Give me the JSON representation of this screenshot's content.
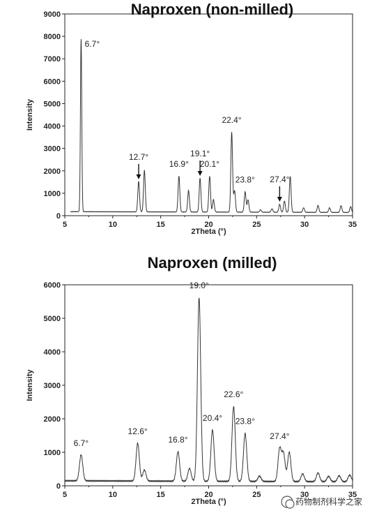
{
  "chart_data": [
    {
      "type": "line",
      "title": "Naproxen (non-milled)",
      "xlabel": "2Theta (°)",
      "ylabel": "Intensity",
      "xlim": [
        5,
        35
      ],
      "ylim": [
        0,
        9000
      ],
      "xticks": [
        "5",
        "10",
        "15",
        "20",
        "25",
        "30",
        "35"
      ],
      "yticks": [
        "0",
        "1000",
        "2000",
        "3000",
        "4000",
        "5000",
        "6000",
        "7000",
        "8000",
        "9000"
      ],
      "baseline": 180,
      "peaks": [
        {
          "x": 6.7,
          "y": 7850
        },
        {
          "x": 12.7,
          "y": 1500
        },
        {
          "x": 13.3,
          "y": 2000
        },
        {
          "x": 16.9,
          "y": 1750
        },
        {
          "x": 17.9,
          "y": 1100
        },
        {
          "x": 19.1,
          "y": 1650
        },
        {
          "x": 20.1,
          "y": 1750
        },
        {
          "x": 20.5,
          "y": 700
        },
        {
          "x": 22.4,
          "y": 3700
        },
        {
          "x": 22.7,
          "y": 1100
        },
        {
          "x": 23.8,
          "y": 1050
        },
        {
          "x": 24.1,
          "y": 700
        },
        {
          "x": 25.4,
          "y": 250
        },
        {
          "x": 26.6,
          "y": 300
        },
        {
          "x": 27.4,
          "y": 500
        },
        {
          "x": 27.9,
          "y": 650
        },
        {
          "x": 28.5,
          "y": 1750
        },
        {
          "x": 29.9,
          "y": 350
        },
        {
          "x": 31.4,
          "y": 450
        },
        {
          "x": 32.6,
          "y": 350
        },
        {
          "x": 33.8,
          "y": 450
        },
        {
          "x": 34.8,
          "y": 400
        }
      ],
      "annotations": [
        {
          "label": "6.7°",
          "x": 6.7,
          "arrow": false
        },
        {
          "label": "12.7°",
          "x": 12.7,
          "arrow": true
        },
        {
          "label": "16.9°",
          "x": 16.9,
          "arrow": false
        },
        {
          "label": "19.1°",
          "x": 19.1,
          "arrow": true
        },
        {
          "label": "20.1°",
          "x": 20.1,
          "arrow": false
        },
        {
          "label": "22.4°",
          "x": 22.4,
          "arrow": false
        },
        {
          "label": "23.8°",
          "x": 23.8,
          "arrow": false
        },
        {
          "label": "27.4°",
          "x": 27.4,
          "arrow": true
        }
      ]
    },
    {
      "type": "line",
      "title": "Naproxen (milled)",
      "xlabel": "2Theta (°)",
      "ylabel": "Intensity",
      "xlim": [
        5,
        35
      ],
      "ylim": [
        0,
        6000
      ],
      "xticks": [
        "5",
        "10",
        "15",
        "20",
        "25",
        "30",
        "35"
      ],
      "yticks": [
        "0",
        "1000",
        "2000",
        "3000",
        "4000",
        "5000",
        "6000"
      ],
      "baseline": 150,
      "peaks": [
        {
          "x": 6.7,
          "y": 900
        },
        {
          "x": 12.6,
          "y": 1250
        },
        {
          "x": 13.3,
          "y": 450
        },
        {
          "x": 16.8,
          "y": 1000
        },
        {
          "x": 18.0,
          "y": 500
        },
        {
          "x": 19.0,
          "y": 5600
        },
        {
          "x": 20.4,
          "y": 1650
        },
        {
          "x": 22.6,
          "y": 2350
        },
        {
          "x": 23.8,
          "y": 1550
        },
        {
          "x": 25.3,
          "y": 280
        },
        {
          "x": 27.4,
          "y": 1100
        },
        {
          "x": 27.8,
          "y": 950
        },
        {
          "x": 28.4,
          "y": 1000
        },
        {
          "x": 29.8,
          "y": 350
        },
        {
          "x": 31.4,
          "y": 380
        },
        {
          "x": 32.5,
          "y": 280
        },
        {
          "x": 33.6,
          "y": 300
        },
        {
          "x": 34.7,
          "y": 320
        }
      ],
      "annotations": [
        {
          "label": "6.7°",
          "x": 6.7,
          "arrow": false
        },
        {
          "label": "12.6°",
          "x": 12.6,
          "arrow": false
        },
        {
          "label": "16.8°",
          "x": 16.8,
          "arrow": false
        },
        {
          "label": "19.0°",
          "x": 19.0,
          "arrow": false
        },
        {
          "label": "20.4°",
          "x": 20.4,
          "arrow": false
        },
        {
          "label": "22.6°",
          "x": 22.6,
          "arrow": false
        },
        {
          "label": "23.8°",
          "x": 23.8,
          "arrow": false
        },
        {
          "label": "27.4°",
          "x": 27.4,
          "arrow": false
        }
      ]
    }
  ],
  "watermark": "药物制剂科学之家"
}
